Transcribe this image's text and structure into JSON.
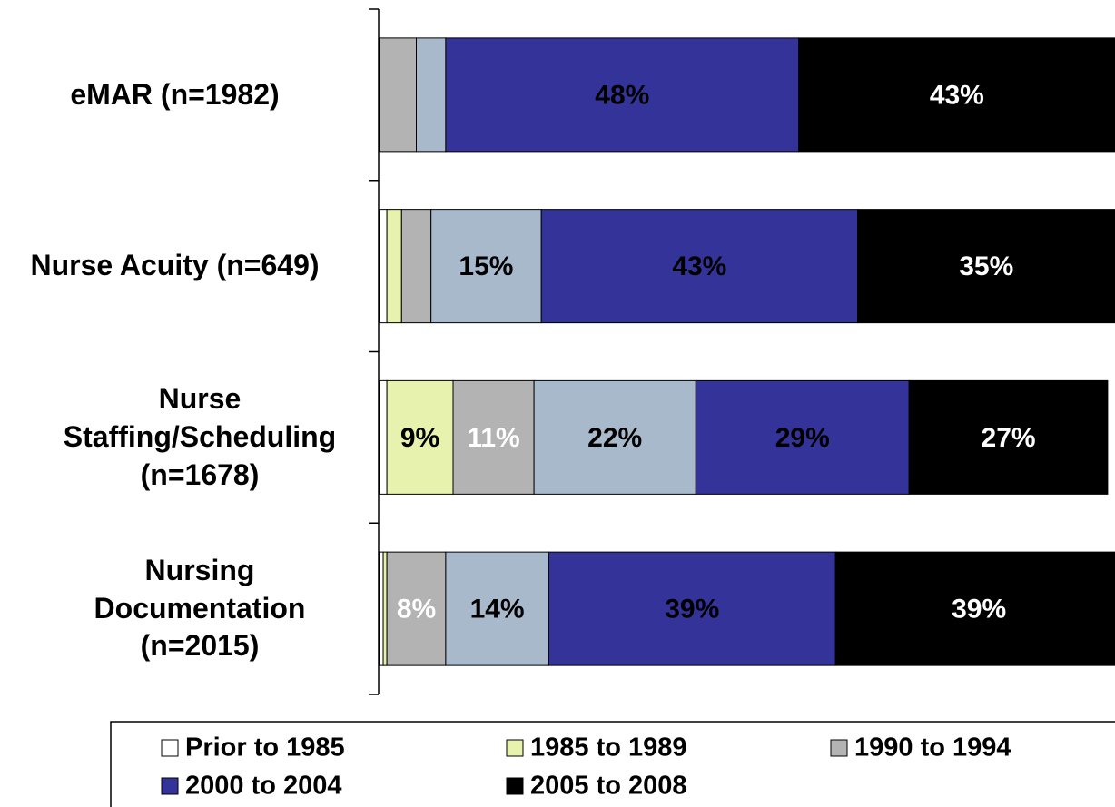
{
  "chart_data": {
    "type": "stacked_bar_horizontal",
    "categories": [
      "eMAR (n=1982)",
      "Nurse Acuity (n=649)",
      "Nurse Staffing/Scheduling (n=1678)",
      "Nursing Documentation (n=2015)"
    ],
    "xlim": [
      0,
      100
    ],
    "series": [
      {
        "name": "Prior to 1985",
        "color": "#ffffff",
        "label_color": "#000000",
        "values": [
          0,
          1,
          1,
          0.5
        ],
        "value_labels": [
          null,
          null,
          null,
          null
        ]
      },
      {
        "name": "1985 to 1989",
        "color": "#e6f2ae",
        "label_color": "#000000",
        "values": [
          0,
          2,
          9,
          0.5
        ],
        "value_labels": [
          null,
          null,
          "9%",
          null
        ]
      },
      {
        "name": "1990 to 1994",
        "color": "#b3b3b3",
        "label_color": "#ffffff",
        "values": [
          5,
          4,
          11,
          8
        ],
        "value_labels": [
          null,
          null,
          "11%",
          "8%"
        ]
      },
      {
        "name": null,
        "color": "#a9b9cc",
        "label_color": "#000000",
        "values": [
          4,
          15,
          22,
          14
        ],
        "value_labels": [
          null,
          "15%",
          "22%",
          "14%"
        ]
      },
      {
        "name": "2000 to 2004",
        "color": "#333399",
        "label_color": "#000000",
        "values": [
          48,
          43,
          29,
          39
        ],
        "value_labels": [
          "48%",
          "43%",
          "29%",
          "39%"
        ]
      },
      {
        "name": "2005 to 2008",
        "color": "#000000",
        "label_color": "#ffffff",
        "values": [
          43,
          35,
          27,
          39
        ],
        "value_labels": [
          "43%",
          "35%",
          "27%",
          "39%"
        ]
      }
    ]
  }
}
